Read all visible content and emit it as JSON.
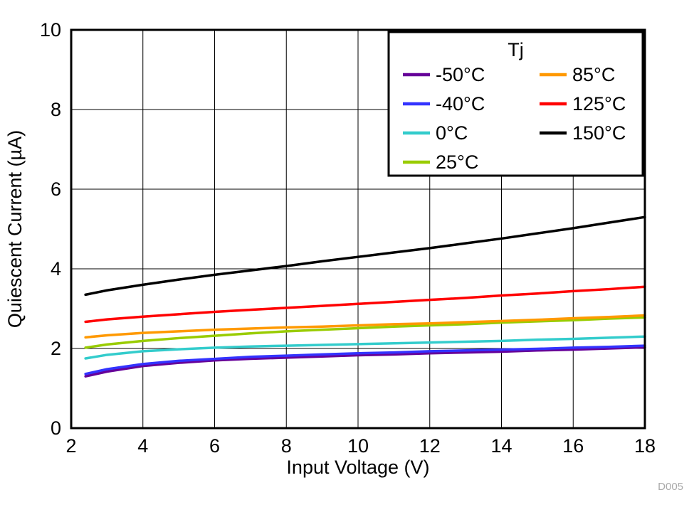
{
  "chart_data": {
    "type": "line",
    "title": "",
    "xlabel": "Input Voltage (V)",
    "ylabel": "Quiescent Current (µA)",
    "watermark": "D005",
    "xlim": [
      2,
      18
    ],
    "ylim": [
      0,
      10
    ],
    "xticks": [
      2,
      4,
      6,
      8,
      10,
      12,
      14,
      16,
      18
    ],
    "yticks": [
      0,
      2,
      4,
      6,
      8,
      10
    ],
    "grid": true,
    "legend": {
      "title": "Tj",
      "position": "top-right",
      "columns": [
        [
          0,
          1,
          2,
          3
        ],
        [
          4,
          5,
          6
        ]
      ]
    },
    "x": [
      2.4,
      3,
      4,
      5,
      6,
      7,
      8,
      9,
      10,
      11,
      12,
      13,
      14,
      15,
      16,
      17,
      18
    ],
    "series": [
      {
        "name": "-50°C",
        "color": "#660099",
        "values": [
          1.3,
          1.42,
          1.56,
          1.64,
          1.7,
          1.74,
          1.77,
          1.8,
          1.83,
          1.85,
          1.88,
          1.9,
          1.92,
          1.95,
          1.97,
          2.0,
          2.03
        ]
      },
      {
        "name": "-40°C",
        "color": "#3333FF",
        "values": [
          1.36,
          1.48,
          1.61,
          1.69,
          1.74,
          1.79,
          1.82,
          1.85,
          1.88,
          1.9,
          1.93,
          1.95,
          1.97,
          1.99,
          2.02,
          2.04,
          2.07
        ]
      },
      {
        "name": "0°C",
        "color": "#33CCCC",
        "values": [
          1.75,
          1.84,
          1.93,
          1.98,
          2.02,
          2.05,
          2.07,
          2.09,
          2.11,
          2.13,
          2.15,
          2.17,
          2.19,
          2.22,
          2.24,
          2.27,
          2.3
        ]
      },
      {
        "name": "25°C",
        "color": "#99CC00",
        "values": [
          2.02,
          2.1,
          2.19,
          2.26,
          2.32,
          2.38,
          2.43,
          2.47,
          2.51,
          2.55,
          2.58,
          2.61,
          2.65,
          2.68,
          2.71,
          2.75,
          2.78
        ]
      },
      {
        "name": "85°C",
        "color": "#FF9900",
        "values": [
          2.28,
          2.33,
          2.39,
          2.43,
          2.47,
          2.5,
          2.53,
          2.55,
          2.58,
          2.61,
          2.63,
          2.66,
          2.69,
          2.72,
          2.76,
          2.79,
          2.83
        ]
      },
      {
        "name": "125°C",
        "color": "#FF0000",
        "values": [
          2.67,
          2.73,
          2.8,
          2.86,
          2.92,
          2.97,
          3.02,
          3.07,
          3.12,
          3.17,
          3.22,
          3.27,
          3.33,
          3.38,
          3.44,
          3.49,
          3.55
        ]
      },
      {
        "name": "150°C",
        "color": "#000000",
        "values": [
          3.35,
          3.46,
          3.6,
          3.73,
          3.85,
          3.96,
          4.07,
          4.19,
          4.3,
          4.41,
          4.52,
          4.64,
          4.76,
          4.89,
          5.02,
          5.16,
          5.3
        ]
      }
    ]
  }
}
